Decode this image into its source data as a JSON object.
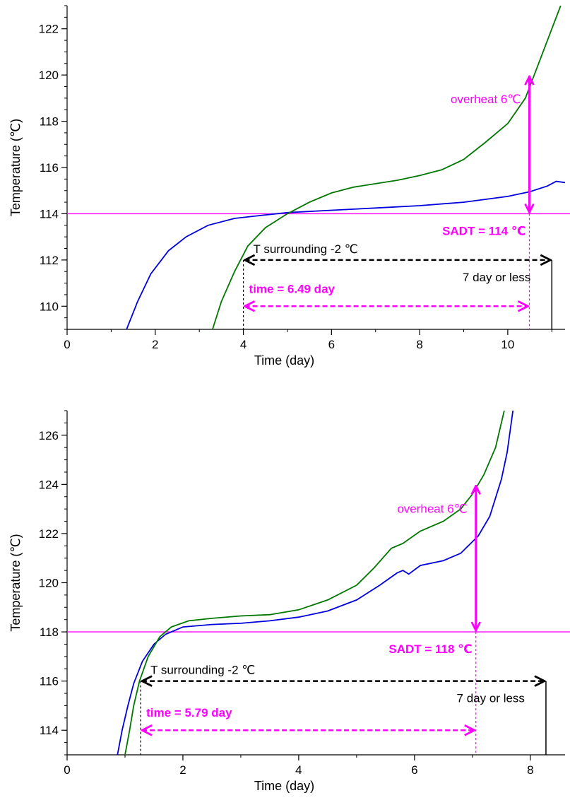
{
  "chart_data": [
    {
      "type": "line",
      "title": "",
      "xlabel": "Time (day)",
      "ylabel": "Temperature (℃)",
      "xlim": [
        0,
        11.3
      ],
      "ylim": [
        109,
        123
      ],
      "x_ticks": [
        "0",
        "2",
        "4",
        "6",
        "8",
        "10"
      ],
      "y_ticks": [
        "110",
        "112",
        "114",
        "116",
        "118",
        "120",
        "122"
      ],
      "x_tick_values": [
        0,
        2,
        4,
        6,
        8,
        10
      ],
      "y_tick_values": [
        110,
        112,
        114,
        116,
        118,
        120,
        122
      ],
      "grid": false,
      "series": [
        {
          "color": "#0000dd",
          "points": [
            [
              1.35,
              109
            ],
            [
              1.6,
              110.2
            ],
            [
              1.9,
              111.4
            ],
            [
              2.3,
              112.4
            ],
            [
              2.7,
              113.0
            ],
            [
              3.2,
              113.5
            ],
            [
              3.8,
              113.8
            ],
            [
              4.5,
              113.95
            ],
            [
              5.0,
              114.05
            ],
            [
              6.0,
              114.15
            ],
            [
              7.0,
              114.25
            ],
            [
              8.0,
              114.35
            ],
            [
              9.0,
              114.5
            ],
            [
              10.0,
              114.75
            ],
            [
              10.5,
              114.95
            ],
            [
              10.9,
              115.2
            ],
            [
              11.1,
              115.4
            ],
            [
              11.3,
              115.35
            ]
          ]
        },
        {
          "color": "#007700",
          "points": [
            [
              3.3,
              109
            ],
            [
              3.5,
              110.2
            ],
            [
              3.8,
              111.5
            ],
            [
              4.1,
              112.6
            ],
            [
              4.5,
              113.4
            ],
            [
              5.0,
              114.0
            ],
            [
              5.5,
              114.5
            ],
            [
              6.0,
              114.9
            ],
            [
              6.5,
              115.15
            ],
            [
              7.0,
              115.3
            ],
            [
              7.5,
              115.45
            ],
            [
              8.0,
              115.65
            ],
            [
              8.5,
              115.9
            ],
            [
              9.0,
              116.35
            ],
            [
              9.5,
              117.1
            ],
            [
              10.0,
              117.9
            ],
            [
              10.4,
              119.0
            ],
            [
              10.7,
              120.5
            ],
            [
              11.0,
              122.0
            ],
            [
              11.2,
              123.0
            ]
          ]
        }
      ],
      "sadt": 114,
      "sadt_label": "SADT = 114 ℃",
      "overheat_label": "overheat 6℃",
      "overheat_top": 120,
      "onset_x": 4.0,
      "end_x": 10.49,
      "limit_x": 11.0,
      "surround_y": 112,
      "time_y": 110,
      "surround_label": "T surrounding -2 ℃",
      "limit_label": "7 day or less",
      "time_label": "time = 6.49 day"
    },
    {
      "type": "line",
      "title": "",
      "xlabel": "Time (day)",
      "ylabel": "Temperature (℃)",
      "xlim": [
        0,
        8.6
      ],
      "ylim": [
        113,
        127
      ],
      "x_ticks": [
        "0",
        "2",
        "4",
        "6",
        "8"
      ],
      "y_ticks": [
        "114",
        "116",
        "118",
        "120",
        "122",
        "124",
        "126"
      ],
      "x_tick_values": [
        0,
        2,
        4,
        6,
        8
      ],
      "y_tick_values": [
        114,
        116,
        118,
        120,
        122,
        124,
        126
      ],
      "grid": false,
      "series": [
        {
          "color": "#0000dd",
          "points": [
            [
              0.87,
              113
            ],
            [
              0.95,
              114.0
            ],
            [
              1.05,
              115.0
            ],
            [
              1.15,
              115.9
            ],
            [
              1.3,
              116.8
            ],
            [
              1.5,
              117.5
            ],
            [
              1.7,
              117.9
            ],
            [
              2.0,
              118.2
            ],
            [
              2.5,
              118.3
            ],
            [
              3.0,
              118.35
            ],
            [
              3.5,
              118.45
            ],
            [
              4.0,
              118.6
            ],
            [
              4.5,
              118.85
            ],
            [
              5.0,
              119.3
            ],
            [
              5.4,
              119.9
            ],
            [
              5.7,
              120.4
            ],
            [
              5.8,
              120.5
            ],
            [
              5.9,
              120.35
            ],
            [
              6.1,
              120.7
            ],
            [
              6.5,
              120.9
            ],
            [
              6.8,
              121.2
            ],
            [
              7.1,
              121.9
            ],
            [
              7.3,
              122.7
            ],
            [
              7.5,
              124.2
            ],
            [
              7.6,
              125.3
            ],
            [
              7.7,
              127
            ]
          ]
        },
        {
          "color": "#007700",
          "points": [
            [
              1.0,
              113
            ],
            [
              1.08,
              114.0
            ],
            [
              1.15,
              115.0
            ],
            [
              1.25,
              116.0
            ],
            [
              1.4,
              117.0
            ],
            [
              1.6,
              117.8
            ],
            [
              1.8,
              118.2
            ],
            [
              2.1,
              118.45
            ],
            [
              2.5,
              118.55
            ],
            [
              3.0,
              118.65
            ],
            [
              3.5,
              118.7
            ],
            [
              4.0,
              118.9
            ],
            [
              4.5,
              119.3
            ],
            [
              5.0,
              119.9
            ],
            [
              5.3,
              120.6
            ],
            [
              5.6,
              121.4
            ],
            [
              5.8,
              121.6
            ],
            [
              6.1,
              122.1
            ],
            [
              6.5,
              122.5
            ],
            [
              6.8,
              123.0
            ],
            [
              7.0,
              123.6
            ],
            [
              7.2,
              124.4
            ],
            [
              7.4,
              125.5
            ],
            [
              7.55,
              127
            ]
          ]
        }
      ],
      "sadt": 118,
      "sadt_label": "SADT = 118 ℃",
      "overheat_label": "overheat 6℃",
      "overheat_top": 124,
      "onset_x": 1.27,
      "end_x": 7.06,
      "limit_x": 8.27,
      "surround_y": 116,
      "time_y": 114,
      "surround_label": "T surrounding -2 ℃",
      "limit_label": "7 day or less",
      "time_label": "time = 5.79 day"
    }
  ]
}
